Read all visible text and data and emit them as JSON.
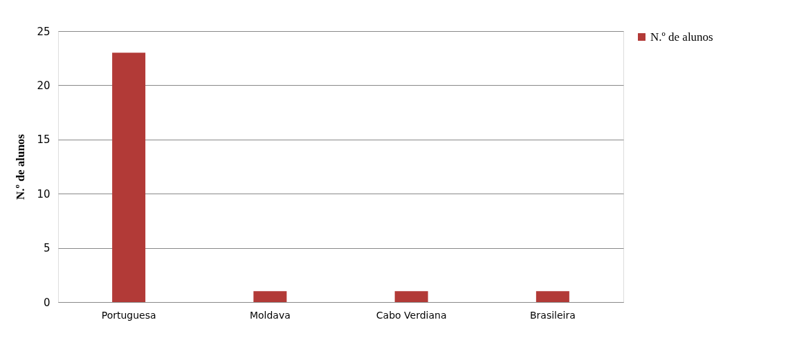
{
  "chart_data": {
    "type": "bar",
    "ylabel": "N.º de alunos",
    "categories": [
      "Portuguesa",
      "Moldava",
      "Cabo Verdiana",
      "Brasileira"
    ],
    "series": [
      {
        "name": "N.º de alunos",
        "color": "#b23a37",
        "values": [
          23,
          1,
          1,
          1
        ]
      }
    ],
    "ylim": [
      0,
      25
    ],
    "yticks": [
      0,
      5,
      10,
      15,
      20,
      25
    ],
    "grid": "y",
    "legend": "right"
  }
}
